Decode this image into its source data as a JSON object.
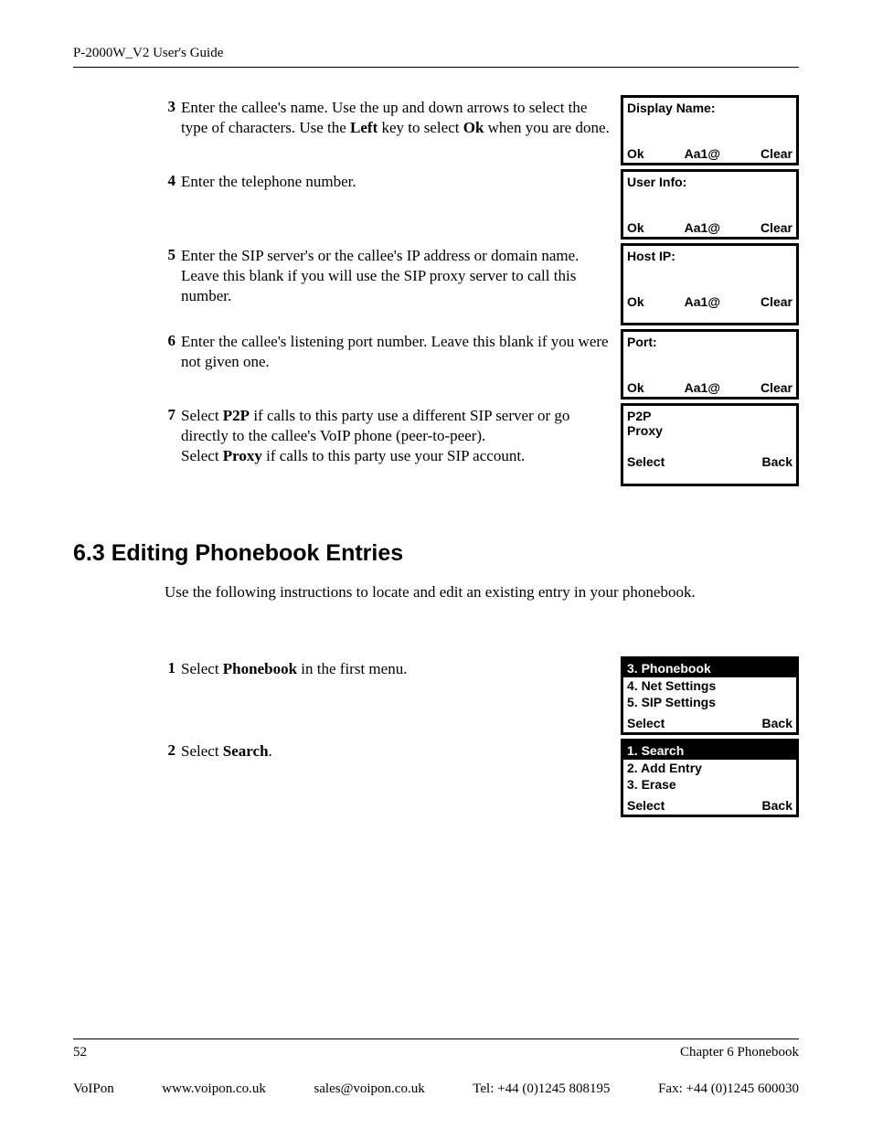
{
  "header": {
    "title": "P-2000W_V2 User's Guide"
  },
  "steps_top": [
    {
      "num": "3",
      "parts": [
        {
          "t": "Enter the callee's name. Use the up and down arrows to select the type of characters. Use the "
        },
        {
          "t": "Left",
          "b": true
        },
        {
          "t": " key to select "
        },
        {
          "t": "Ok",
          "b": true
        },
        {
          "t": " when you are done."
        }
      ],
      "screen": {
        "title": "Display Name:",
        "left": "Ok",
        "mid": "Aa1@",
        "right": "Clear"
      }
    },
    {
      "num": "4",
      "parts": [
        {
          "t": "Enter the telephone number."
        }
      ],
      "screen": {
        "title": "User Info:",
        "left": "Ok",
        "mid": "Aa1@",
        "right": "Clear"
      }
    },
    {
      "num": "5",
      "parts": [
        {
          "t": "Enter the SIP server's or the callee's IP address or domain name. Leave this blank if you will use the SIP proxy server to call this number."
        }
      ],
      "screen": {
        "title": "Host IP:",
        "left": "Ok",
        "mid": "Aa1@",
        "right": "Clear"
      }
    },
    {
      "num": "6",
      "parts": [
        {
          "t": "Enter the callee's listening port number. Leave this blank if you were not given one."
        }
      ],
      "screen": {
        "title": "Port:",
        "left": "Ok",
        "mid": "Aa1@",
        "right": "Clear"
      }
    },
    {
      "num": "7",
      "parts": [
        {
          "t": "Select "
        },
        {
          "t": "P2P",
          "b": true
        },
        {
          "t": " if calls to this party use a different SIP server or go directly to the callee's VoIP phone (peer-to-peer).\nSelect "
        },
        {
          "t": "Proxy",
          "b": true
        },
        {
          "t": " if calls to this party use your SIP account."
        }
      ],
      "screen": {
        "title_lines": [
          "P2P",
          "Proxy"
        ],
        "left": "Select",
        "mid": "",
        "right": "Back"
      }
    }
  ],
  "section": {
    "heading": "6.3  Editing Phonebook Entries",
    "intro": "Use the following instructions to locate and edit an existing entry in your phonebook."
  },
  "steps_bottom": [
    {
      "num": "1",
      "parts": [
        {
          "t": "Select "
        },
        {
          "t": "Phonebook",
          "b": true
        },
        {
          "t": " in the first menu."
        }
      ],
      "menu": {
        "highlight": "3. Phonebook",
        "items": [
          "4. Net Settings",
          "5. SIP Settings"
        ],
        "left": "Select",
        "right": "Back"
      }
    },
    {
      "num": "2",
      "parts": [
        {
          "t": "Select "
        },
        {
          "t": "Search",
          "b": true
        },
        {
          "t": "."
        }
      ],
      "menu": {
        "highlight": "1. Search",
        "items": [
          "2. Add Entry",
          "3. Erase"
        ],
        "left": "Select",
        "right": "Back"
      }
    }
  ],
  "footer": {
    "page_num": "52",
    "chapter": "Chapter 6 Phonebook",
    "voipon": "VoIPon",
    "url": "www.voipon.co.uk",
    "email": "sales@voipon.co.uk",
    "tel": "Tel: +44 (0)1245 808195",
    "fax": "Fax: +44 (0)1245 600030"
  }
}
